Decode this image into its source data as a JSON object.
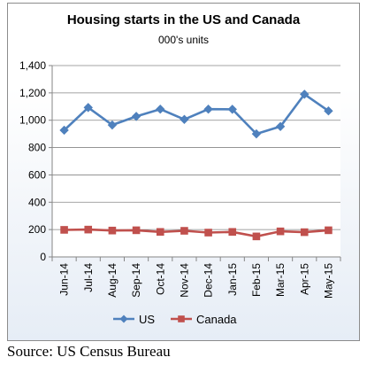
{
  "chart_data": {
    "type": "line",
    "title": "Housing starts in the US and Canada",
    "subtitle": "000's units",
    "categories": [
      "Jun-14",
      "Jul-14",
      "Aug-14",
      "Sep-14",
      "Oct-14",
      "Nov-14",
      "Dec-14",
      "Jan-15",
      "Feb-15",
      "Mar-15",
      "Apr-15",
      "May-15"
    ],
    "series": [
      {
        "name": "US",
        "color": "#4F81BD",
        "marker": "diamond",
        "values": [
          927,
          1093,
          965,
          1028,
          1081,
          1006,
          1081,
          1080,
          900,
          954,
          1190,
          1068
        ]
      },
      {
        "name": "Canada",
        "color": "#C0504D",
        "marker": "square",
        "values": [
          198,
          200,
          193,
          195,
          183,
          191,
          178,
          183,
          150,
          187,
          181,
          195
        ]
      }
    ],
    "ylim": [
      0,
      1400
    ],
    "yticks": [
      0,
      200,
      400,
      600,
      800,
      1000,
      1200,
      1400
    ],
    "ytick_labels": [
      "0",
      "200",
      "400",
      "600",
      "800",
      "1,000",
      "1,200",
      "1,400"
    ],
    "grid": true,
    "legend_position": "bottom"
  },
  "source": "Source: US Census Bureau"
}
